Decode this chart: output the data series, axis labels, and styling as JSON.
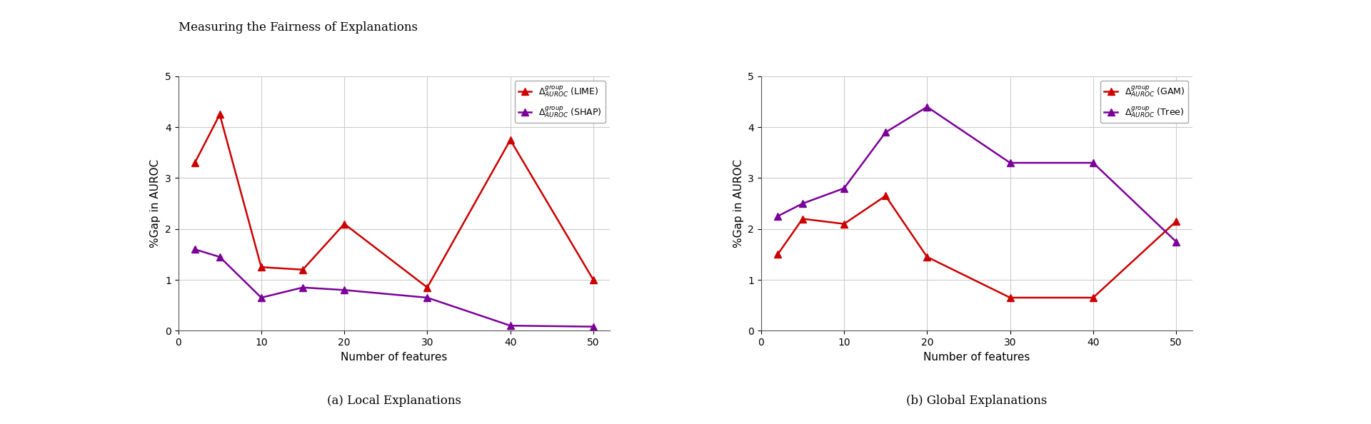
{
  "title": "Measuring the Fairness of Explanations",
  "left": {
    "subtitle": "(a) Local Explanations",
    "ylabel": "%Gap in AUROC",
    "xlabel": "Number of features",
    "ylim": [
      0,
      5
    ],
    "yticks": [
      0,
      1,
      2,
      3,
      4,
      5
    ],
    "xticks": [
      0,
      10,
      20,
      30,
      40,
      50
    ],
    "xlim": [
      0,
      52
    ],
    "series": [
      {
        "label": "$\\Delta_{AUROC}^{group}$ (LIME)",
        "color": "#cc0000",
        "x": [
          2,
          5,
          10,
          15,
          20,
          30,
          40,
          50
        ],
        "y": [
          3.3,
          4.25,
          1.25,
          1.2,
          2.1,
          0.85,
          3.75,
          1.0
        ]
      },
      {
        "label": "$\\Delta_{AUROC}^{group}$ (SHAP)",
        "color": "#7b0099",
        "x": [
          2,
          5,
          10,
          15,
          20,
          30,
          40,
          50
        ],
        "y": [
          1.6,
          1.45,
          0.65,
          0.85,
          0.8,
          0.65,
          0.1,
          0.08
        ]
      }
    ]
  },
  "right": {
    "subtitle": "(b) Global Explanations",
    "ylabel": "%Gap in AUROC",
    "xlabel": "Number of features",
    "ylim": [
      0,
      5
    ],
    "yticks": [
      0,
      1,
      2,
      3,
      4,
      5
    ],
    "xticks": [
      0,
      10,
      20,
      30,
      40,
      50
    ],
    "xlim": [
      0,
      52
    ],
    "series": [
      {
        "label": "$\\Delta_{AUROC}^{group}$ (GAM)",
        "color": "#cc0000",
        "x": [
          2,
          5,
          10,
          15,
          20,
          30,
          40,
          50
        ],
        "y": [
          1.5,
          2.2,
          2.1,
          2.65,
          1.45,
          0.65,
          0.65,
          2.15
        ]
      },
      {
        "label": "$\\Delta_{AUROC}^{group}$ (Tree)",
        "color": "#7b0099",
        "x": [
          2,
          5,
          10,
          15,
          20,
          30,
          40,
          50
        ],
        "y": [
          2.25,
          2.5,
          2.8,
          3.9,
          4.4,
          3.3,
          3.3,
          1.75
        ]
      }
    ]
  },
  "grid_color": "#cccccc",
  "background_color": "#ffffff",
  "title_fontsize": 12,
  "subtitle_fontsize": 12,
  "label_fontsize": 11,
  "tick_fontsize": 10,
  "legend_fontsize": 9,
  "linewidth": 1.8,
  "marker": "^",
  "markersize": 7
}
